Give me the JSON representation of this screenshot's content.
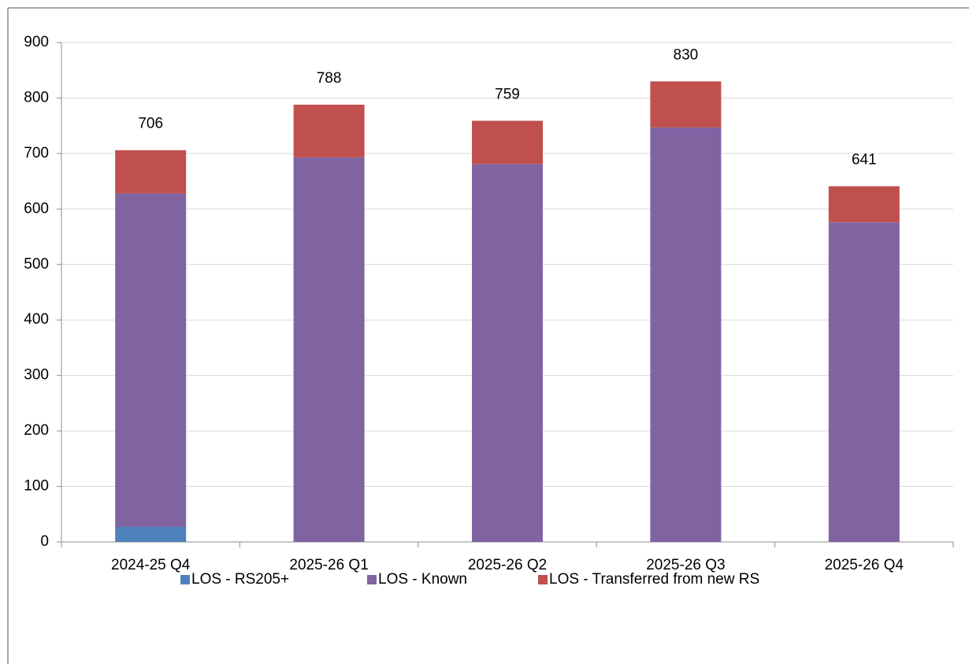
{
  "chart_data": {
    "type": "stacked_bar",
    "categories": [
      "2024-25 Q4",
      "2025-26 Q1",
      "2025-26 Q2",
      "2025-26 Q3",
      "2025-26 Q4"
    ],
    "series": [
      {
        "name": "LOS - RS205+",
        "color": "#4f81bd",
        "values": [
          27,
          0,
          0,
          0,
          0
        ]
      },
      {
        "name": "LOS - Known",
        "color": "#8064a2",
        "values": [
          601,
          693,
          681,
          747,
          576
        ]
      },
      {
        "name": "LOS - Transferred from new RS",
        "color": "#c0504d",
        "values": [
          78,
          95,
          78,
          83,
          65
        ]
      }
    ],
    "totals": [
      706,
      788,
      759,
      830,
      641
    ],
    "ylim": [
      0,
      900
    ],
    "yticks": [
      0,
      100,
      200,
      300,
      400,
      500,
      600,
      700,
      800,
      900
    ],
    "grid": true,
    "legend": "bottom"
  }
}
